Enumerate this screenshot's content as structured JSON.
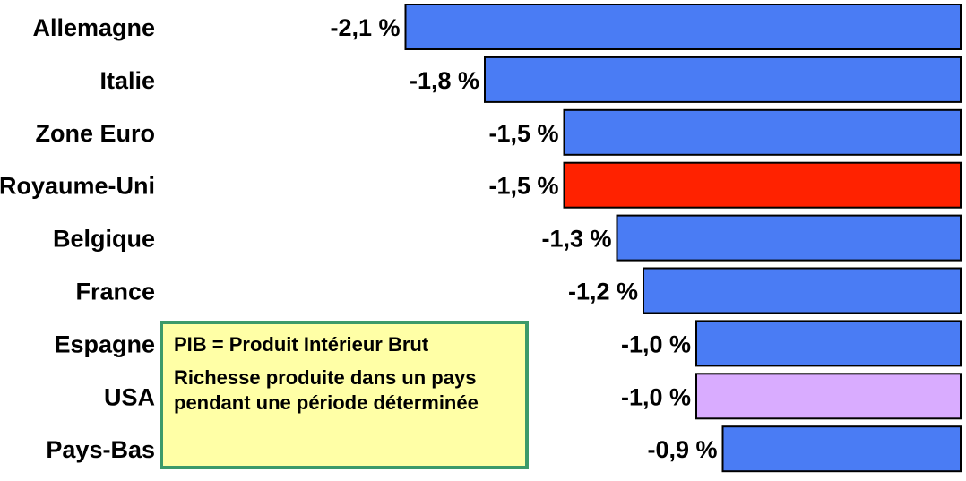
{
  "chart_data": {
    "type": "bar",
    "orientation": "horizontal",
    "categories": [
      "Allemagne",
      "Italie",
      "Zone Euro",
      "Royaume-Uni",
      "Belgique",
      "France",
      "Espagne",
      "USA",
      "Pays-Bas"
    ],
    "values": [
      -2.1,
      -1.8,
      -1.5,
      -1.5,
      -1.3,
      -1.2,
      -1.0,
      -1.0,
      -0.9
    ],
    "value_labels": [
      "-2,1  %",
      "-1,8  %",
      "-1,5  %",
      "-1,5  %",
      "-1,3  %",
      "-1,2  %",
      "-1,0  %",
      "-1,0  %",
      "-0,9  %"
    ],
    "colors": [
      "#4a7cf4",
      "#4a7cf4",
      "#4a7cf4",
      "#ff2200",
      "#4a7cf4",
      "#4a7cf4",
      "#4a7cf4",
      "#d9acff",
      "#4a7cf4"
    ],
    "title": "",
    "xlabel": "",
    "ylabel": "",
    "xlim": [
      -2.1,
      0
    ],
    "grid": false
  },
  "note": {
    "line1": "PIB = Produit Intérieur Brut",
    "line2": "Richesse produite dans un pays pendant une période déterminée"
  }
}
